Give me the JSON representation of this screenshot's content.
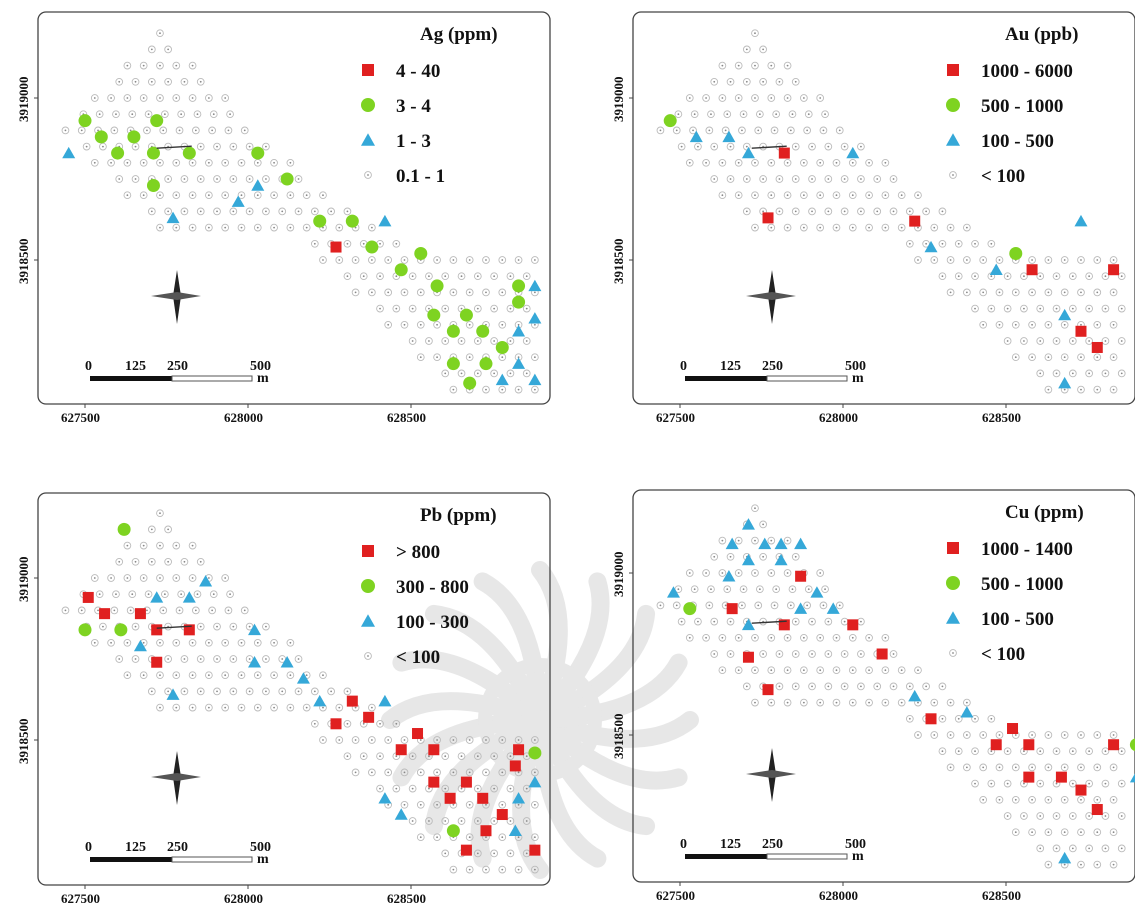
{
  "colors": {
    "red": "#e02020",
    "green": "#7ed321",
    "blue": "#35a8d8",
    "sample": "#bbbbbb",
    "frame": "#444444",
    "watermark": "#d4d4d4"
  },
  "panels": [
    {
      "id": "ag",
      "title": "Ag (ppm)",
      "legend": [
        {
          "label": "4 - 40",
          "symbol": "square",
          "color": "red"
        },
        {
          "label": "3 - 4",
          "symbol": "circle",
          "color": "green"
        },
        {
          "label": "1 - 3",
          "symbol": "triangle",
          "color": "blue"
        },
        {
          "label": "0.1 - 1",
          "symbol": "dot",
          "color": "sample"
        }
      ],
      "x_ticks": [
        "627500",
        "628000",
        "628500"
      ],
      "y_ticks": [
        "3919000",
        "3918500"
      ],
      "scale_labels": [
        "0",
        "125",
        "250",
        "500"
      ],
      "scale_unit": "m",
      "anomalies": [
        {
          "s": "circle",
          "c": "green",
          "x": 627500,
          "y": 3918930
        },
        {
          "s": "circle",
          "c": "green",
          "x": 627550,
          "y": 3918880
        },
        {
          "s": "circle",
          "c": "green",
          "x": 627650,
          "y": 3918880
        },
        {
          "s": "circle",
          "c": "green",
          "x": 627720,
          "y": 3918930
        },
        {
          "s": "circle",
          "c": "green",
          "x": 627600,
          "y": 3918830
        },
        {
          "s": "circle",
          "c": "green",
          "x": 627710,
          "y": 3918830
        },
        {
          "s": "circle",
          "c": "green",
          "x": 627820,
          "y": 3918830
        },
        {
          "s": "circle",
          "c": "green",
          "x": 627710,
          "y": 3918730
        },
        {
          "s": "circle",
          "c": "green",
          "x": 628030,
          "y": 3918830
        },
        {
          "s": "circle",
          "c": "green",
          "x": 628120,
          "y": 3918750
        },
        {
          "s": "circle",
          "c": "green",
          "x": 628220,
          "y": 3918620
        },
        {
          "s": "circle",
          "c": "green",
          "x": 628320,
          "y": 3918620
        },
        {
          "s": "circle",
          "c": "green",
          "x": 628380,
          "y": 3918540
        },
        {
          "s": "circle",
          "c": "green",
          "x": 628470,
          "y": 3918470
        },
        {
          "s": "circle",
          "c": "green",
          "x": 628530,
          "y": 3918520
        },
        {
          "s": "circle",
          "c": "green",
          "x": 628580,
          "y": 3918420
        },
        {
          "s": "circle",
          "c": "green",
          "x": 628570,
          "y": 3918330
        },
        {
          "s": "circle",
          "c": "green",
          "x": 628670,
          "y": 3918330
        },
        {
          "s": "circle",
          "c": "green",
          "x": 628630,
          "y": 3918280
        },
        {
          "s": "circle",
          "c": "green",
          "x": 628720,
          "y": 3918280
        },
        {
          "s": "circle",
          "c": "green",
          "x": 628780,
          "y": 3918230
        },
        {
          "s": "circle",
          "c": "green",
          "x": 628730,
          "y": 3918180
        },
        {
          "s": "circle",
          "c": "green",
          "x": 628630,
          "y": 3918180
        },
        {
          "s": "circle",
          "c": "green",
          "x": 628680,
          "y": 3918120
        },
        {
          "s": "circle",
          "c": "green",
          "x": 628830,
          "y": 3918420
        },
        {
          "s": "circle",
          "c": "green",
          "x": 628830,
          "y": 3918370
        },
        {
          "s": "square",
          "c": "red",
          "x": 628270,
          "y": 3918540
        },
        {
          "s": "triangle",
          "c": "blue",
          "x": 627450,
          "y": 3918830
        },
        {
          "s": "triangle",
          "c": "blue",
          "x": 628030,
          "y": 3918730
        },
        {
          "s": "triangle",
          "c": "blue",
          "x": 627970,
          "y": 3918680
        },
        {
          "s": "triangle",
          "c": "blue",
          "x": 627770,
          "y": 3918630
        },
        {
          "s": "triangle",
          "c": "blue",
          "x": 628420,
          "y": 3918620
        },
        {
          "s": "triangle",
          "c": "blue",
          "x": 628880,
          "y": 3918420
        },
        {
          "s": "triangle",
          "c": "blue",
          "x": 628880,
          "y": 3918320
        },
        {
          "s": "triangle",
          "c": "blue",
          "x": 628830,
          "y": 3918280
        },
        {
          "s": "triangle",
          "c": "blue",
          "x": 628830,
          "y": 3918180
        },
        {
          "s": "triangle",
          "c": "blue",
          "x": 628780,
          "y": 3918130
        },
        {
          "s": "triangle",
          "c": "blue",
          "x": 628880,
          "y": 3918130
        }
      ]
    },
    {
      "id": "au",
      "title": "Au (ppb)",
      "legend": [
        {
          "label": "1000 - 6000",
          "symbol": "square",
          "color": "red"
        },
        {
          "label": "500 - 1000",
          "symbol": "circle",
          "color": "green"
        },
        {
          "label": "100 - 500",
          "symbol": "triangle",
          "color": "blue"
        },
        {
          "label": "< 100",
          "symbol": "dot",
          "color": "sample"
        }
      ],
      "x_ticks": [
        "627500",
        "628000",
        "628500"
      ],
      "y_ticks": [
        "3919000",
        "3918500"
      ],
      "scale_labels": [
        "0",
        "125",
        "250",
        "500"
      ],
      "scale_unit": "m",
      "anomalies": [
        {
          "s": "circle",
          "c": "green",
          "x": 627470,
          "y": 3918930
        },
        {
          "s": "circle",
          "c": "green",
          "x": 628530,
          "y": 3918520
        },
        {
          "s": "triangle",
          "c": "blue",
          "x": 627550,
          "y": 3918880
        },
        {
          "s": "triangle",
          "c": "blue",
          "x": 627650,
          "y": 3918880
        },
        {
          "s": "triangle",
          "c": "blue",
          "x": 627710,
          "y": 3918830
        },
        {
          "s": "triangle",
          "c": "blue",
          "x": 628030,
          "y": 3918830
        },
        {
          "s": "triangle",
          "c": "blue",
          "x": 628270,
          "y": 3918540
        },
        {
          "s": "triangle",
          "c": "blue",
          "x": 628470,
          "y": 3918470
        },
        {
          "s": "triangle",
          "c": "blue",
          "x": 628730,
          "y": 3918620
        },
        {
          "s": "triangle",
          "c": "blue",
          "x": 628680,
          "y": 3918330
        },
        {
          "s": "triangle",
          "c": "blue",
          "x": 628680,
          "y": 3918120
        },
        {
          "s": "square",
          "c": "red",
          "x": 627820,
          "y": 3918830
        },
        {
          "s": "square",
          "c": "red",
          "x": 627770,
          "y": 3918630
        },
        {
          "s": "square",
          "c": "red",
          "x": 628220,
          "y": 3918620
        },
        {
          "s": "square",
          "c": "red",
          "x": 628580,
          "y": 3918470
        },
        {
          "s": "square",
          "c": "red",
          "x": 628830,
          "y": 3918470
        },
        {
          "s": "square",
          "c": "red",
          "x": 628730,
          "y": 3918280
        },
        {
          "s": "square",
          "c": "red",
          "x": 628780,
          "y": 3918230
        }
      ]
    },
    {
      "id": "pb",
      "title": "Pb (ppm)",
      "legend": [
        {
          "label": "> 800",
          "symbol": "square",
          "color": "red"
        },
        {
          "label": "300 - 800",
          "symbol": "circle",
          "color": "green"
        },
        {
          "label": "100 - 300",
          "symbol": "triangle",
          "color": "blue"
        },
        {
          "label": "< 100",
          "symbol": "dot",
          "color": "sample"
        }
      ],
      "x_ticks": [
        "627500",
        "628000",
        "628500"
      ],
      "y_ticks": [
        "3919000",
        "3918500"
      ],
      "scale_labels": [
        "0",
        "125",
        "250",
        "500"
      ],
      "scale_unit": "m",
      "anomalies": [
        {
          "s": "circle",
          "c": "green",
          "x": 627620,
          "y": 3919150
        },
        {
          "s": "circle",
          "c": "green",
          "x": 627500,
          "y": 3918840
        },
        {
          "s": "circle",
          "c": "green",
          "x": 627610,
          "y": 3918840
        },
        {
          "s": "circle",
          "c": "green",
          "x": 628880,
          "y": 3918460
        },
        {
          "s": "circle",
          "c": "green",
          "x": 628630,
          "y": 3918220
        },
        {
          "s": "square",
          "c": "red",
          "x": 627510,
          "y": 3918940
        },
        {
          "s": "square",
          "c": "red",
          "x": 627560,
          "y": 3918890
        },
        {
          "s": "square",
          "c": "red",
          "x": 627670,
          "y": 3918890
        },
        {
          "s": "square",
          "c": "red",
          "x": 627720,
          "y": 3918840
        },
        {
          "s": "square",
          "c": "red",
          "x": 627820,
          "y": 3918840
        },
        {
          "s": "square",
          "c": "red",
          "x": 627720,
          "y": 3918740
        },
        {
          "s": "square",
          "c": "red",
          "x": 628320,
          "y": 3918620
        },
        {
          "s": "square",
          "c": "red",
          "x": 628270,
          "y": 3918550
        },
        {
          "s": "square",
          "c": "red",
          "x": 628370,
          "y": 3918570
        },
        {
          "s": "square",
          "c": "red",
          "x": 628520,
          "y": 3918520
        },
        {
          "s": "square",
          "c": "red",
          "x": 628470,
          "y": 3918470
        },
        {
          "s": "square",
          "c": "red",
          "x": 628570,
          "y": 3918470
        },
        {
          "s": "square",
          "c": "red",
          "x": 628830,
          "y": 3918470
        },
        {
          "s": "square",
          "c": "red",
          "x": 628820,
          "y": 3918420
        },
        {
          "s": "square",
          "c": "red",
          "x": 628570,
          "y": 3918370
        },
        {
          "s": "square",
          "c": "red",
          "x": 628670,
          "y": 3918370
        },
        {
          "s": "square",
          "c": "red",
          "x": 628620,
          "y": 3918320
        },
        {
          "s": "square",
          "c": "red",
          "x": 628720,
          "y": 3918320
        },
        {
          "s": "square",
          "c": "red",
          "x": 628780,
          "y": 3918270
        },
        {
          "s": "square",
          "c": "red",
          "x": 628730,
          "y": 3918220
        },
        {
          "s": "square",
          "c": "red",
          "x": 628670,
          "y": 3918160
        },
        {
          "s": "square",
          "c": "red",
          "x": 628880,
          "y": 3918160
        },
        {
          "s": "triangle",
          "c": "blue",
          "x": 627720,
          "y": 3918940
        },
        {
          "s": "triangle",
          "c": "blue",
          "x": 627820,
          "y": 3918940
        },
        {
          "s": "triangle",
          "c": "blue",
          "x": 627870,
          "y": 3918990
        },
        {
          "s": "triangle",
          "c": "blue",
          "x": 627670,
          "y": 3918790
        },
        {
          "s": "triangle",
          "c": "blue",
          "x": 628020,
          "y": 3918840
        },
        {
          "s": "triangle",
          "c": "blue",
          "x": 628020,
          "y": 3918740
        },
        {
          "s": "triangle",
          "c": "blue",
          "x": 628120,
          "y": 3918740
        },
        {
          "s": "triangle",
          "c": "blue",
          "x": 628170,
          "y": 3918690
        },
        {
          "s": "triangle",
          "c": "blue",
          "x": 627770,
          "y": 3918640
        },
        {
          "s": "triangle",
          "c": "blue",
          "x": 628220,
          "y": 3918620
        },
        {
          "s": "triangle",
          "c": "blue",
          "x": 628420,
          "y": 3918620
        },
        {
          "s": "triangle",
          "c": "blue",
          "x": 628420,
          "y": 3918320
        },
        {
          "s": "triangle",
          "c": "blue",
          "x": 628470,
          "y": 3918270
        },
        {
          "s": "triangle",
          "c": "blue",
          "x": 628830,
          "y": 3918320
        },
        {
          "s": "triangle",
          "c": "blue",
          "x": 628880,
          "y": 3918370
        },
        {
          "s": "triangle",
          "c": "blue",
          "x": 628820,
          "y": 3918220
        }
      ]
    },
    {
      "id": "cu",
      "title": "Cu (ppm)",
      "legend": [
        {
          "label": "1000 - 1400",
          "symbol": "square",
          "color": "red"
        },
        {
          "label": "500 - 1000",
          "symbol": "circle",
          "color": "green"
        },
        {
          "label": "100 - 500",
          "symbol": "triangle",
          "color": "blue"
        },
        {
          "label": "< 100",
          "symbol": "dot",
          "color": "sample"
        }
      ],
      "x_ticks": [
        "627500",
        "628000",
        "628500"
      ],
      "y_ticks": [
        "3919000",
        "3918500"
      ],
      "scale_labels": [
        "0",
        "125",
        "250",
        "500"
      ],
      "scale_unit": "m",
      "anomalies": [
        {
          "s": "circle",
          "c": "green",
          "x": 627530,
          "y": 3918890
        },
        {
          "s": "circle",
          "c": "green",
          "x": 628900,
          "y": 3918470
        },
        {
          "s": "triangle",
          "c": "blue",
          "x": 627710,
          "y": 3919150
        },
        {
          "s": "triangle",
          "c": "blue",
          "x": 627660,
          "y": 3919090
        },
        {
          "s": "triangle",
          "c": "blue",
          "x": 627760,
          "y": 3919090
        },
        {
          "s": "triangle",
          "c": "blue",
          "x": 627810,
          "y": 3919090
        },
        {
          "s": "triangle",
          "c": "blue",
          "x": 627870,
          "y": 3919090
        },
        {
          "s": "triangle",
          "c": "blue",
          "x": 627710,
          "y": 3919040
        },
        {
          "s": "triangle",
          "c": "blue",
          "x": 627810,
          "y": 3919040
        },
        {
          "s": "triangle",
          "c": "blue",
          "x": 627650,
          "y": 3918990
        },
        {
          "s": "triangle",
          "c": "blue",
          "x": 627480,
          "y": 3918940
        },
        {
          "s": "triangle",
          "c": "blue",
          "x": 627920,
          "y": 3918940
        },
        {
          "s": "triangle",
          "c": "blue",
          "x": 627870,
          "y": 3918890
        },
        {
          "s": "triangle",
          "c": "blue",
          "x": 627970,
          "y": 3918890
        },
        {
          "s": "triangle",
          "c": "blue",
          "x": 627710,
          "y": 3918840
        },
        {
          "s": "triangle",
          "c": "blue",
          "x": 628220,
          "y": 3918620
        },
        {
          "s": "triangle",
          "c": "blue",
          "x": 628380,
          "y": 3918570
        },
        {
          "s": "triangle",
          "c": "blue",
          "x": 628900,
          "y": 3918370
        },
        {
          "s": "triangle",
          "c": "blue",
          "x": 628680,
          "y": 3918120
        },
        {
          "s": "square",
          "c": "red",
          "x": 627870,
          "y": 3918990
        },
        {
          "s": "square",
          "c": "red",
          "x": 627660,
          "y": 3918890
        },
        {
          "s": "square",
          "c": "red",
          "x": 627820,
          "y": 3918840
        },
        {
          "s": "square",
          "c": "red",
          "x": 628030,
          "y": 3918840
        },
        {
          "s": "square",
          "c": "red",
          "x": 627710,
          "y": 3918740
        },
        {
          "s": "square",
          "c": "red",
          "x": 628120,
          "y": 3918750
        },
        {
          "s": "square",
          "c": "red",
          "x": 627770,
          "y": 3918640
        },
        {
          "s": "square",
          "c": "red",
          "x": 628270,
          "y": 3918550
        },
        {
          "s": "square",
          "c": "red",
          "x": 628520,
          "y": 3918520
        },
        {
          "s": "square",
          "c": "red",
          "x": 628470,
          "y": 3918470
        },
        {
          "s": "square",
          "c": "red",
          "x": 628570,
          "y": 3918470
        },
        {
          "s": "square",
          "c": "red",
          "x": 628830,
          "y": 3918470
        },
        {
          "s": "square",
          "c": "red",
          "x": 628570,
          "y": 3918370
        },
        {
          "s": "square",
          "c": "red",
          "x": 628670,
          "y": 3918370
        },
        {
          "s": "square",
          "c": "red",
          "x": 628730,
          "y": 3918330
        },
        {
          "s": "square",
          "c": "red",
          "x": 628780,
          "y": 3918270
        }
      ]
    }
  ]
}
